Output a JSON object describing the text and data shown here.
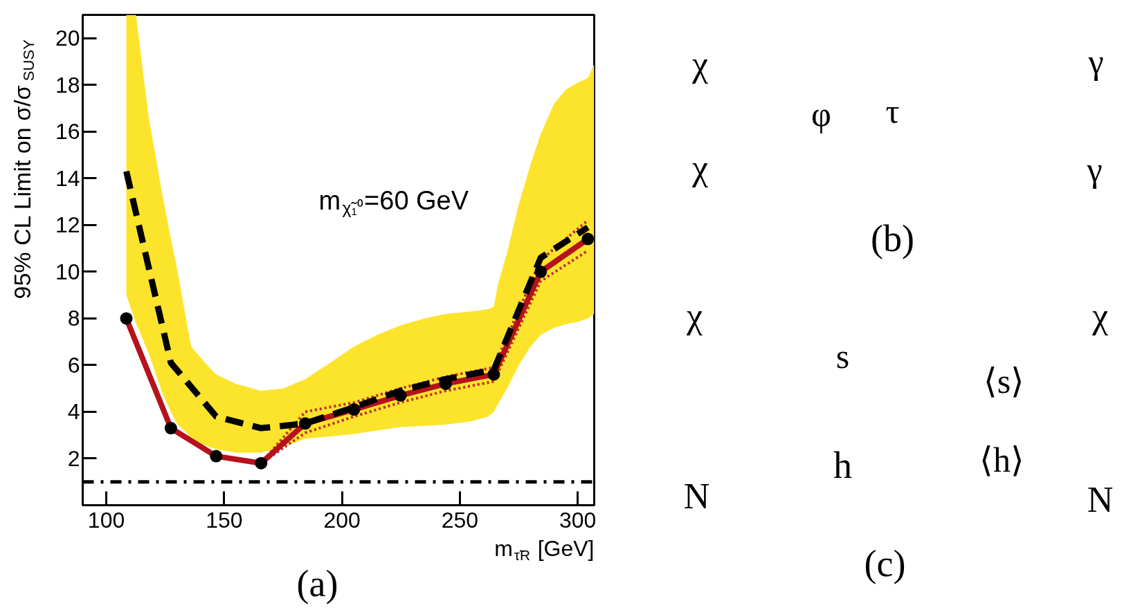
{
  "chart_data": [
    {
      "type": "line",
      "xlabel": "m$_{τ̃R}$ [GeV]",
      "ylabel": "95% CL Limit on σ/σ$_{SUSY}$",
      "annotations": [
        "m$_{χ̃₁⁰}$=60 GeV",
        "(a)"
      ],
      "xlim": [
        90,
        307
      ],
      "ylim": [
        0,
        21
      ],
      "xticks": [
        100,
        150,
        200,
        250,
        300
      ],
      "yticks": [
        2,
        4,
        6,
        8,
        10,
        12,
        14,
        16,
        18,
        20
      ],
      "ref_lines": [
        {
          "axis": "y",
          "value": 1,
          "color": "#000000",
          "line_style": "dashdot"
        }
      ],
      "series": [
        {
          "type": "area",
          "color": "#fde42c",
          "x": [
            108.5,
            112.6,
            118,
            123.8,
            127.4,
            129.9,
            136,
            141,
            146.6,
            155,
            165.7,
            175,
            184.4,
            195,
            205.1,
            215,
            224.8,
            235,
            244.0,
            255,
            262,
            264.4,
            266,
            270,
            275,
            280,
            284.3,
            290,
            295,
            300,
            304.3,
            307
          ],
          "values": [
            null,
            null,
            null,
            null,
            null,
            null,
            null,
            null,
            null,
            null,
            null,
            null,
            null,
            null,
            null,
            null,
            null,
            null,
            null,
            null,
            null,
            null,
            null,
            null,
            null,
            null,
            null,
            null,
            null,
            null,
            null,
            null
          ],
          "lower": [
            9.0,
            7.8,
            6.5,
            4.8,
            4.0,
            3.5,
            2.9,
            2.6,
            2.4,
            2.25,
            2.25,
            2.5,
            2.85,
            2.95,
            3.05,
            3.2,
            3.35,
            3.4,
            3.45,
            3.6,
            3.8,
            4.0,
            4.3,
            5.0,
            6.0,
            6.8,
            7.3,
            7.6,
            7.75,
            7.85,
            8.0,
            8.2
          ],
          "upper": [
            21,
            21,
            16.6,
            13.3,
            11.4,
            10.2,
            6.8,
            6.2,
            5.6,
            5.2,
            4.9,
            5.0,
            5.4,
            6.1,
            6.8,
            7.3,
            7.7,
            8.0,
            8.2,
            8.3,
            8.4,
            8.5,
            9.4,
            10.8,
            12.9,
            14.6,
            15.9,
            17.2,
            17.8,
            18.1,
            18.3,
            18.9
          ]
        },
        {
          "type": "line",
          "color": "#c62828",
          "line_style": "dotted",
          "x": [
            165.7,
            184.4,
            205.1,
            224.8,
            244.0,
            264.4,
            284.3,
            304.3
          ],
          "values": [
            1.8,
            4.0,
            4.4,
            5.0,
            5.5,
            5.9,
            10.5,
            12.2
          ]
        },
        {
          "type": "line",
          "color": "#c62828",
          "line_style": "dotted",
          "x": [
            165.7,
            184.4,
            205.1,
            224.8,
            244.0,
            264.4,
            284.3,
            304.3
          ],
          "values": [
            1.8,
            3.1,
            3.8,
            4.4,
            4.9,
            5.3,
            9.6,
            10.9
          ]
        },
        {
          "type": "line",
          "color": "#b5121b",
          "line_style": "solid",
          "x": [
            108.5,
            127.4,
            146.6,
            165.7,
            184.4,
            205.1,
            224.8,
            244.0,
            264.4,
            284.3,
            304.3
          ],
          "values": [
            8.0,
            3.3,
            2.1,
            1.8,
            3.5,
            4.1,
            4.7,
            5.2,
            5.6,
            10.0,
            11.4
          ]
        },
        {
          "type": "line",
          "color": "#000000",
          "line_style": "dashed",
          "x": [
            108.5,
            127.4,
            146.6,
            165.7,
            184.4,
            205.1,
            224.8,
            244.0,
            264.4,
            284.3,
            304.3
          ],
          "values": [
            14.3,
            6.1,
            3.8,
            3.3,
            3.5,
            4.2,
            4.9,
            5.4,
            5.8,
            10.6,
            11.9
          ]
        },
        {
          "type": "scatter",
          "color": "#000000",
          "marker": "circle",
          "x": [
            108.5,
            127.4,
            146.6,
            165.7,
            184.4,
            205.1,
            224.8,
            244.0,
            264.4,
            284.3,
            304.3
          ],
          "values": [
            8.0,
            3.3,
            2.1,
            1.8,
            3.5,
            4.1,
            4.7,
            5.2,
            5.6,
            10.0,
            11.4
          ]
        }
      ]
    },
    {
      "type": "other",
      "annotations": [
        "χ",
        "χ",
        "φ",
        "τ",
        "γ",
        "γ",
        "(b)"
      ]
    },
    {
      "type": "other",
      "annotations": [
        "χ",
        "χ",
        "s",
        "⟨s⟩",
        "⟨h⟩",
        "h",
        "N",
        "N",
        "(c)"
      ]
    }
  ]
}
